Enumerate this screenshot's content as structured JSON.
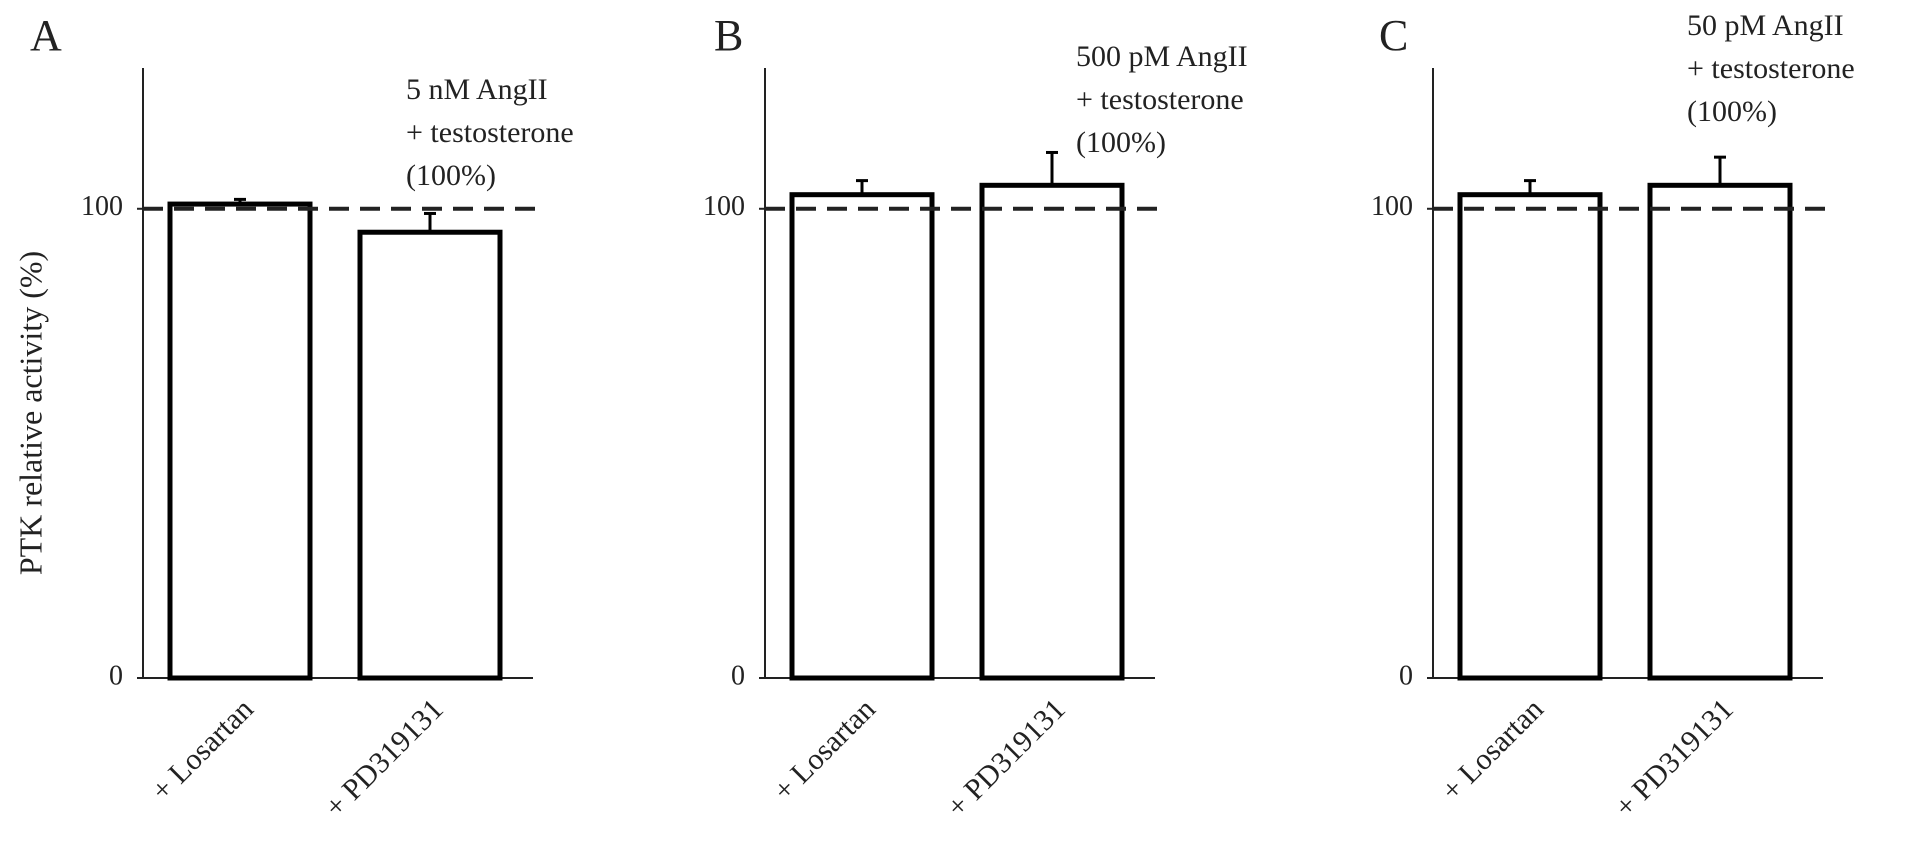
{
  "chart_data": [
    {
      "type": "bar",
      "panel_label": "A",
      "ylabel": "PTK relative activity (%)",
      "annotation": [
        "5 nM AngII",
        "+ testosterone",
        "(100%)"
      ],
      "categories": [
        "+ Losartan",
        "+ PD319131"
      ],
      "values": [
        101,
        95
      ],
      "errors": [
        1,
        4
      ],
      "ylim": [
        0,
        130
      ],
      "yticks": [
        0,
        100
      ],
      "reference_line": 100,
      "color": "#000000"
    },
    {
      "type": "bar",
      "panel_label": "B",
      "annotation": [
        "500 pM AngII",
        "+ testosterone",
        "(100%)"
      ],
      "categories": [
        "+ Losartan",
        "+ PD319131"
      ],
      "values": [
        103,
        105
      ],
      "errors": [
        3,
        7
      ],
      "ylim": [
        0,
        130
      ],
      "yticks": [
        0,
        100
      ],
      "reference_line": 100,
      "color": "#000000"
    },
    {
      "type": "bar",
      "panel_label": "C",
      "annotation": [
        "50 pM AngII",
        "+ testosterone",
        "(100%)"
      ],
      "categories": [
        "+ Losartan",
        "+ PD319131"
      ],
      "values": [
        103,
        105
      ],
      "errors": [
        3,
        6
      ],
      "ylim": [
        0,
        130
      ],
      "yticks": [
        0,
        100
      ],
      "reference_line": 100,
      "color": "#000000"
    }
  ]
}
